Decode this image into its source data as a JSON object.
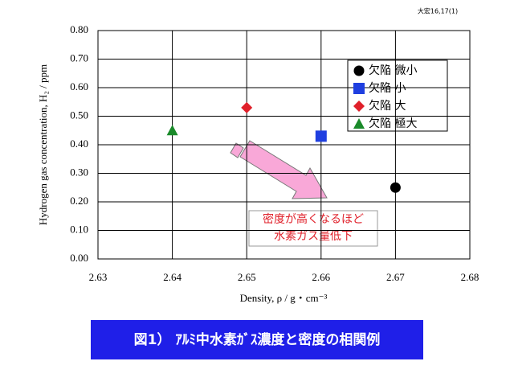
{
  "chart_data": {
    "type": "scatter",
    "note": "大宏16,17(1)",
    "xlabel": "Density, ρ / g・cm⁻³",
    "ylabel": "Hydrogen gas concentration, H₂ / ppm",
    "xlim": [
      2.63,
      2.68
    ],
    "xticks": [
      2.63,
      2.64,
      2.65,
      2.66,
      2.67,
      2.68
    ],
    "ylim": [
      0,
      0.8
    ],
    "yticks": [
      {
        "value": 0,
        "label": "0.00"
      },
      {
        "value": 0.1,
        "label": "0.10"
      },
      {
        "value": 0.2,
        "label": "0.20"
      },
      {
        "value": 0.3,
        "label": "0.30"
      },
      {
        "value": 0.4,
        "label": "0.40"
      },
      {
        "value": 0.5,
        "label": "0.50"
      },
      {
        "value": 0.6,
        "label": "0.60"
      },
      {
        "value": 0.7,
        "label": "0.70"
      },
      {
        "value": 0.8,
        "label": "0.80"
      }
    ],
    "grid": true,
    "legend": "upper right",
    "series": [
      {
        "name": "欠陥 微小",
        "color": "#000000",
        "marker": "circle",
        "x": [
          2.67
        ],
        "values": [
          0.25
        ]
      },
      {
        "name": "欠陥 小",
        "color": "#1f3fe0",
        "marker": "square",
        "x": [
          2.66
        ],
        "values": [
          0.43
        ]
      },
      {
        "name": "欠陥 大",
        "color": "#e0202a",
        "marker": "diamond",
        "x": [
          2.65
        ],
        "values": [
          0.53
        ]
      },
      {
        "name": "欠陥 極大",
        "color": "#1a8a2a",
        "marker": "triangle",
        "x": [
          2.64
        ],
        "values": [
          0.45
        ]
      }
    ],
    "annotation": [
      "密度が高くなるほど",
      "水素ガス量低下"
    ],
    "title": "図1） ｱﾙﾐ中水素ｶﾞｽ濃度と密度の相関例"
  }
}
